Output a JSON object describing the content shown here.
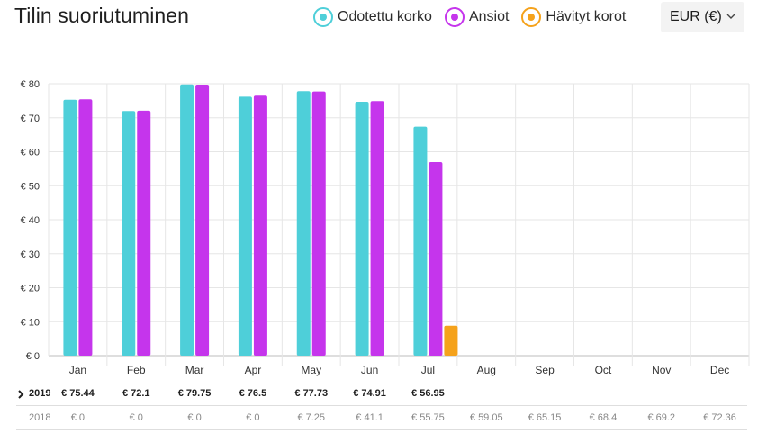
{
  "header": {
    "title": "Tilin suoriutuminen",
    "currency": "EUR (€)"
  },
  "legend": [
    {
      "label": "Odotettu korko",
      "color": "#4ecfd9"
    },
    {
      "label": "Ansiot",
      "color": "#c535ec"
    },
    {
      "label": "Hävityt korot",
      "color": "#f5a21b"
    }
  ],
  "chart_data": {
    "type": "bar",
    "categories": [
      "Jan",
      "Feb",
      "Mar",
      "Apr",
      "May",
      "Jun",
      "Jul",
      "Aug",
      "Sep",
      "Oct",
      "Nov",
      "Dec"
    ],
    "series": [
      {
        "name": "Odotettu korko",
        "color": "#4ecfd9",
        "values": [
          75.3,
          72.0,
          79.8,
          76.2,
          77.8,
          74.7,
          67.4,
          null,
          null,
          null,
          null,
          null
        ]
      },
      {
        "name": "Ansiot",
        "color": "#c535ec",
        "values": [
          75.44,
          72.1,
          79.75,
          76.5,
          77.73,
          74.91,
          56.95,
          null,
          null,
          null,
          null,
          null
        ]
      },
      {
        "name": "Hävityt korot",
        "color": "#f5a21b",
        "values": [
          null,
          null,
          null,
          null,
          null,
          null,
          8.8,
          null,
          null,
          null,
          null,
          null
        ]
      }
    ],
    "yticks": [
      "€ 0",
      "€ 10",
      "€ 20",
      "€ 30",
      "€ 40",
      "€ 50",
      "€ 60",
      "€ 70",
      "€ 80"
    ],
    "ylim": [
      0,
      80
    ],
    "grid": true
  },
  "table": {
    "rows": [
      {
        "year": "2019",
        "expanded": true,
        "values": [
          "€ 75.44",
          "€ 72.1",
          "€ 79.75",
          "€ 76.5",
          "€ 77.73",
          "€ 74.91",
          "€ 56.95",
          "",
          "",
          "",
          "",
          ""
        ]
      },
      {
        "year": "2018",
        "expanded": false,
        "values": [
          "€ 0",
          "€ 0",
          "€ 0",
          "€ 0",
          "€ 7.25",
          "€ 41.1",
          "€ 55.75",
          "€ 59.05",
          "€ 65.15",
          "€ 68.4",
          "€ 69.2",
          "€ 72.36"
        ]
      }
    ]
  }
}
